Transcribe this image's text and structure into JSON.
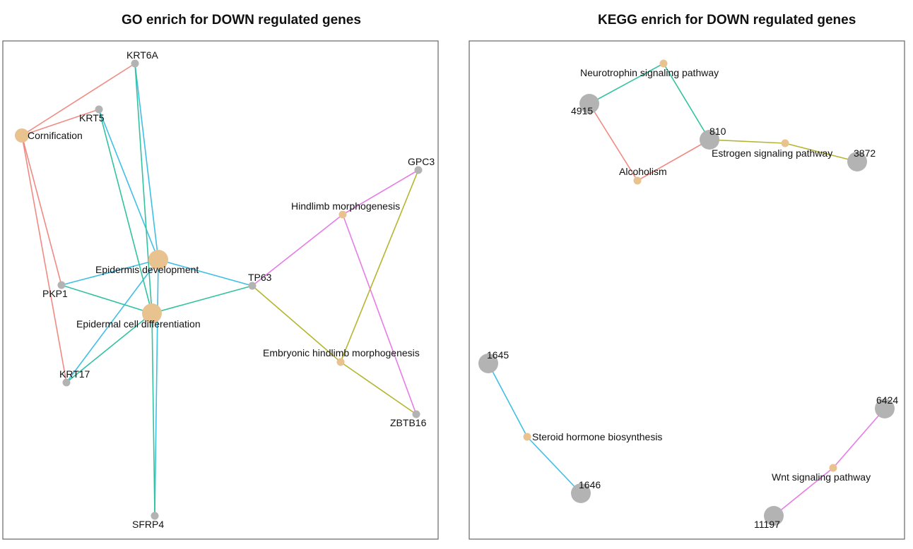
{
  "panels": [
    {
      "id": "go",
      "title": "GO enrich for DOWN regulated genes",
      "nodes": [
        {
          "id": "KRT6A",
          "label": "KRT6A",
          "kind": "gene",
          "size": "small"
        },
        {
          "id": "KRT5",
          "label": "KRT5",
          "kind": "gene",
          "size": "small"
        },
        {
          "id": "Cornification",
          "label": "Cornification",
          "kind": "term",
          "size": "medium"
        },
        {
          "id": "GPC3",
          "label": "GPC3",
          "kind": "gene",
          "size": "small"
        },
        {
          "id": "Hindlimb morphogenesis",
          "label": "Hindlimb morphogenesis",
          "kind": "term",
          "size": "small"
        },
        {
          "id": "Epidermis development",
          "label": "Epidermis development",
          "kind": "term",
          "size": "large"
        },
        {
          "id": "TP63",
          "label": "TP63",
          "kind": "gene",
          "size": "small"
        },
        {
          "id": "PKP1",
          "label": "PKP1",
          "kind": "gene",
          "size": "small"
        },
        {
          "id": "Epidermal cell differentiation",
          "label": "Epidermal cell differentiation",
          "kind": "term",
          "size": "large"
        },
        {
          "id": "Embryonic hindlimb morphogenesis",
          "label": "Embryonic hindlimb morphogenesis",
          "kind": "term",
          "size": "small"
        },
        {
          "id": "KRT17",
          "label": "KRT17",
          "kind": "gene",
          "size": "small"
        },
        {
          "id": "ZBTB16",
          "label": "ZBTB16",
          "kind": "gene",
          "size": "small"
        },
        {
          "id": "SFRP4",
          "label": "SFRP4",
          "kind": "gene",
          "size": "small"
        }
      ],
      "edges": [
        {
          "source": "Cornification",
          "target": "KRT6A",
          "color": "#f08a83"
        },
        {
          "source": "Cornification",
          "target": "KRT5",
          "color": "#f08a83"
        },
        {
          "source": "Cornification",
          "target": "PKP1",
          "color": "#f08a83"
        },
        {
          "source": "Cornification",
          "target": "KRT17",
          "color": "#f08a83"
        },
        {
          "source": "Epidermis development",
          "target": "KRT6A",
          "color": "#3fbfe6"
        },
        {
          "source": "Epidermis development",
          "target": "KRT5",
          "color": "#3fbfe6"
        },
        {
          "source": "Epidermis development",
          "target": "PKP1",
          "color": "#3fbfe6"
        },
        {
          "source": "Epidermis development",
          "target": "TP63",
          "color": "#3fbfe6"
        },
        {
          "source": "Epidermis development",
          "target": "KRT17",
          "color": "#3fbfe6"
        },
        {
          "source": "Epidermis development",
          "target": "SFRP4",
          "color": "#3fbfe6"
        },
        {
          "source": "Epidermal cell differentiation",
          "target": "KRT6A",
          "color": "#33c2a0"
        },
        {
          "source": "Epidermal cell differentiation",
          "target": "KRT5",
          "color": "#33c2a0"
        },
        {
          "source": "Epidermal cell differentiation",
          "target": "PKP1",
          "color": "#33c2a0"
        },
        {
          "source": "Epidermal cell differentiation",
          "target": "TP63",
          "color": "#33c2a0"
        },
        {
          "source": "Epidermal cell differentiation",
          "target": "KRT17",
          "color": "#33c2a0"
        },
        {
          "source": "Epidermal cell differentiation",
          "target": "SFRP4",
          "color": "#33c2a0"
        },
        {
          "source": "Hindlimb morphogenesis",
          "target": "TP63",
          "color": "#e67ce6"
        },
        {
          "source": "Hindlimb morphogenesis",
          "target": "ZBTB16",
          "color": "#e67ce6"
        },
        {
          "source": "Hindlimb morphogenesis",
          "target": "GPC3",
          "color": "#e67ce6"
        },
        {
          "source": "Embryonic hindlimb morphogenesis",
          "target": "TP63",
          "color": "#b5b530"
        },
        {
          "source": "Embryonic hindlimb morphogenesis",
          "target": "ZBTB16",
          "color": "#b5b530"
        },
        {
          "source": "Embryonic hindlimb morphogenesis",
          "target": "GPC3",
          "color": "#b5b530"
        }
      ]
    },
    {
      "id": "kegg",
      "title": "KEGG enrich for DOWN regulated genes",
      "nodes": [
        {
          "id": "Neurotrophin signaling pathway",
          "label": "Neurotrophin signaling pathway",
          "kind": "term",
          "size": "small"
        },
        {
          "id": "4915",
          "label": "4915",
          "kind": "gene",
          "size": "large"
        },
        {
          "id": "810",
          "label": "810",
          "kind": "gene",
          "size": "large"
        },
        {
          "id": "Estrogen signaling pathway",
          "label": "Estrogen signaling pathway",
          "kind": "term",
          "size": "small"
        },
        {
          "id": "3872",
          "label": "3872",
          "kind": "gene",
          "size": "large"
        },
        {
          "id": "Alcoholism",
          "label": "Alcoholism",
          "kind": "term",
          "size": "small"
        },
        {
          "id": "1645",
          "label": "1645",
          "kind": "gene",
          "size": "large"
        },
        {
          "id": "Steroid hormone biosynthesis",
          "label": "Steroid hormone biosynthesis",
          "kind": "term",
          "size": "small"
        },
        {
          "id": "1646",
          "label": "1646",
          "kind": "gene",
          "size": "large"
        },
        {
          "id": "6424",
          "label": "6424",
          "kind": "gene",
          "size": "large"
        },
        {
          "id": "Wnt signaling pathway",
          "label": "Wnt signaling pathway",
          "kind": "term",
          "size": "small"
        },
        {
          "id": "11197",
          "label": "11197",
          "kind": "gene",
          "size": "large"
        }
      ],
      "edges": [
        {
          "source": "Neurotrophin signaling pathway",
          "target": "4915",
          "color": "#33c2a0"
        },
        {
          "source": "Neurotrophin signaling pathway",
          "target": "810",
          "color": "#33c2a0"
        },
        {
          "source": "Alcoholism",
          "target": "4915",
          "color": "#f08a83"
        },
        {
          "source": "Alcoholism",
          "target": "810",
          "color": "#f08a83"
        },
        {
          "source": "Estrogen signaling pathway",
          "target": "810",
          "color": "#b5b530"
        },
        {
          "source": "Estrogen signaling pathway",
          "target": "3872",
          "color": "#b5b530"
        },
        {
          "source": "Steroid hormone biosynthesis",
          "target": "1645",
          "color": "#3fbfe6"
        },
        {
          "source": "Steroid hormone biosynthesis",
          "target": "1646",
          "color": "#3fbfe6"
        },
        {
          "source": "Wnt signaling pathway",
          "target": "6424",
          "color": "#e67ce6"
        },
        {
          "source": "Wnt signaling pathway",
          "target": "11197",
          "color": "#e67ce6"
        }
      ]
    }
  ],
  "colors": {
    "term_node": "#e8c28f",
    "gene_node": "#b3b3b3",
    "panel_border": "#666666"
  }
}
